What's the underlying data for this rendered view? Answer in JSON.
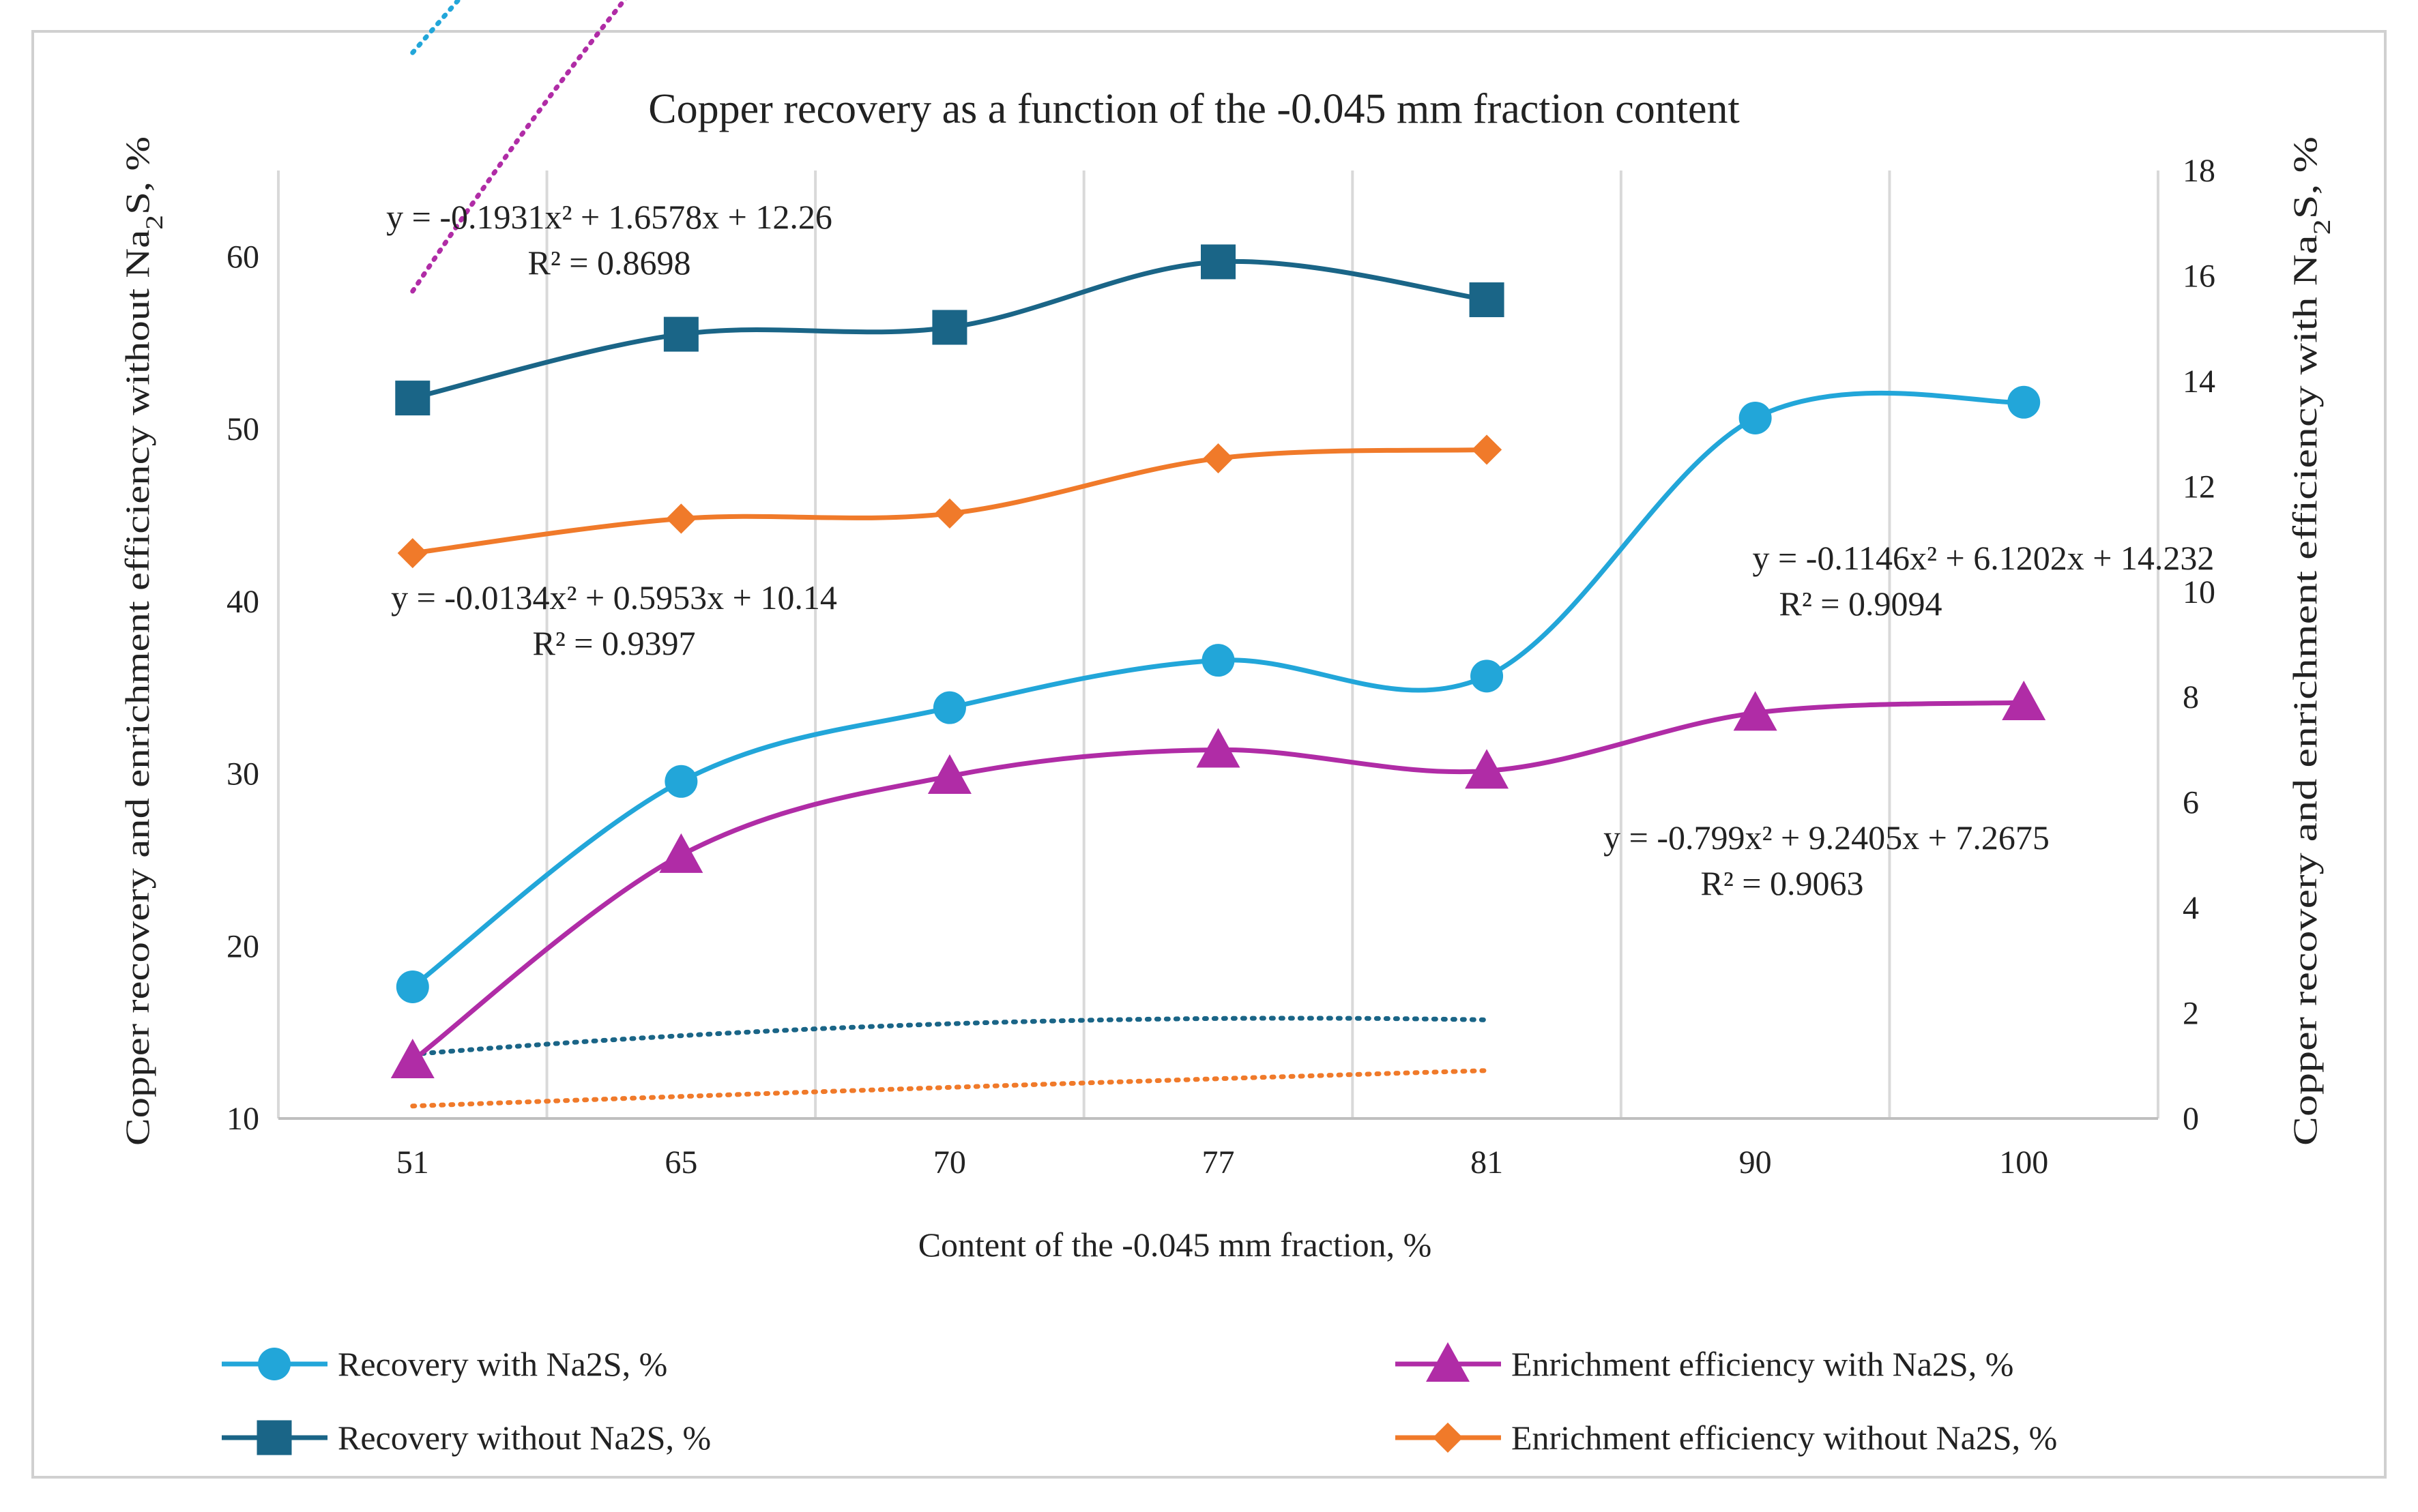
{
  "chart_data": {
    "type": "line",
    "title": "Copper recovery as a function of the -0.045 mm fraction content",
    "xlabel": "Content of the -0.045 mm fraction, %",
    "ylabel_left": "Copper recovery and enrichment  efficiency  without Na2S, %",
    "ylabel_right": "Copper recovery and enrichment  efficiency with Na2S, %",
    "categories": [
      "51",
      "65",
      "70",
      "77",
      "81",
      "90",
      "100"
    ],
    "y_left": {
      "min": 10,
      "max": 65,
      "ticks": [
        10,
        20,
        30,
        40,
        50,
        60
      ]
    },
    "y_right": {
      "min": 0,
      "max": 18,
      "ticks": [
        0,
        2,
        4,
        6,
        8,
        10,
        12,
        14,
        16,
        18
      ]
    },
    "grid": "vertical",
    "legend_position": "bottom",
    "series": [
      {
        "name": "Recovery with Na2S, %",
        "axis": "right",
        "marker": "circle",
        "color": "#22A6D9",
        "values": [
          2.5,
          6.4,
          7.8,
          8.7,
          8.4,
          13.3,
          13.6
        ],
        "trend": {
          "a": -0.1146,
          "b": 6.1202,
          "c": 14.232,
          "x_offset": 0
        }
      },
      {
        "name": "Enrichment efficiency with Na2S, %",
        "axis": "right",
        "marker": "triangle",
        "color": "#B02CA6",
        "values": [
          1.1,
          5.0,
          6.5,
          7.0,
          6.6,
          7.7,
          7.9
        ],
        "trend": {
          "a": -0.799,
          "b": 9.2405,
          "c": 7.2675,
          "x_offset": 0
        }
      },
      {
        "name": "Recovery without Na2S, %",
        "axis": "left",
        "marker": "square",
        "color": "#1A6587",
        "values": [
          51.8,
          55.5,
          55.9,
          59.7,
          57.5,
          null,
          null
        ],
        "trend": {
          "a": -0.1931,
          "b": 1.6578,
          "c": 12.26,
          "x_offset": 0
        }
      },
      {
        "name": "Enrichment efficiency without Na2S, %",
        "axis": "left",
        "marker": "diamond",
        "color": "#F07A2A",
        "values": [
          42.8,
          44.8,
          45.1,
          48.3,
          48.8,
          null,
          null
        ],
        "trend": {
          "a": -0.0134,
          "b": 0.5953,
          "c": 10.14,
          "x_offset": 0
        }
      }
    ],
    "annotations": [
      {
        "eq": "y = -0.1931x² + 1.6578x + 12.26",
        "r2": "R² = 0.8698"
      },
      {
        "eq": "y = -0.0134x² + 0.5953x + 10.14",
        "r2": "R² = 0.9397"
      },
      {
        "eq": "y = -0.1146x² + 6.1202x + 14.232",
        "r2": "R² = 0.9094"
      },
      {
        "eq": "y = -0.799x² + 9.2405x + 7.2675",
        "r2": "R² = 0.9063"
      }
    ]
  }
}
